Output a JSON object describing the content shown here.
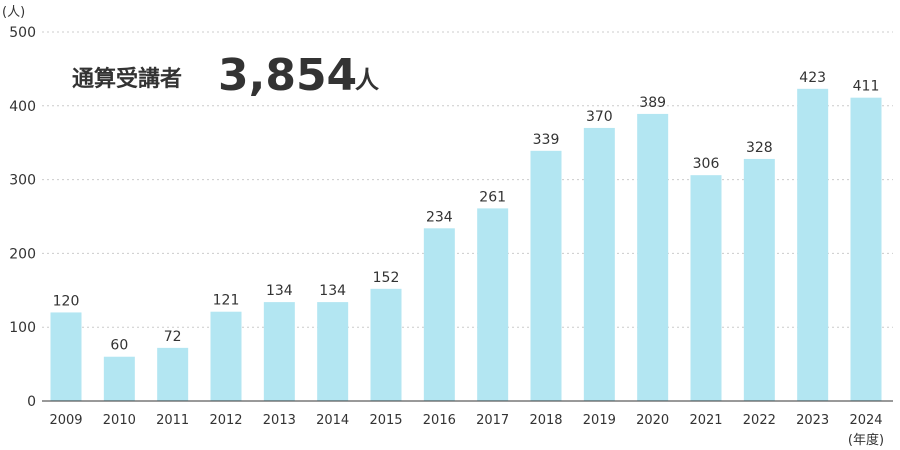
{
  "chart_data": {
    "type": "bar",
    "ylabel": "(人)",
    "xlabel": "(年度)",
    "ylim": [
      0,
      500
    ],
    "yticks": [
      0,
      100,
      200,
      300,
      400,
      500
    ],
    "grid": true,
    "categories": [
      "2009",
      "2010",
      "2011",
      "2012",
      "2013",
      "2014",
      "2015",
      "2016",
      "2017",
      "2018",
      "2019",
      "2020",
      "2021",
      "2022",
      "2023",
      "2024"
    ],
    "values": [
      120,
      60,
      72,
      121,
      134,
      134,
      152,
      234,
      261,
      339,
      370,
      389,
      306,
      328,
      423,
      411
    ],
    "bar_color": "#b3e6f2",
    "annotation": {
      "label": "通算受講者",
      "value": "3,854",
      "unit": "人"
    }
  }
}
